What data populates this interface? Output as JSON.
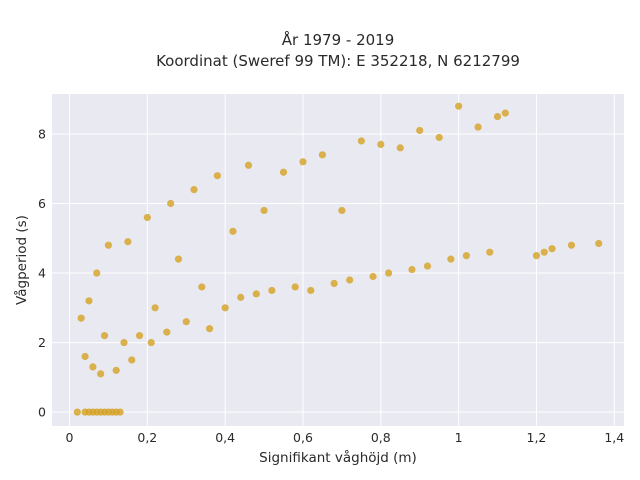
{
  "chart_data": {
    "type": "scatter",
    "title_lines": [
      "År 1979 - 2019",
      "Koordinat (Sweref 99 TM): E 352218, N 6212799"
    ],
    "xlabel": "Signifikant våghöjd (m)",
    "ylabel": "Vågperiod (s)",
    "xlim": [
      -0.045,
      1.425
    ],
    "ylim": [
      -0.4,
      9.15
    ],
    "x_ticks": [
      0,
      0.2,
      0.4,
      0.6,
      0.8,
      1,
      1.2,
      1.4
    ],
    "x_tick_labels": [
      "0",
      "0,2",
      "0,4",
      "0,6",
      "0,8",
      "1",
      "1,2",
      "1,4"
    ],
    "y_ticks": [
      0,
      2,
      4,
      6,
      8
    ],
    "y_tick_labels": [
      "0",
      "2",
      "4",
      "6",
      "8"
    ],
    "grid": true,
    "marker_color": "#D4A122",
    "plot_background": "#E9E9F1",
    "grid_color": "#FFFFFF",
    "series": [
      {
        "values": [
          [
            0.02,
            0.0
          ],
          [
            0.04,
            0.0
          ],
          [
            0.05,
            0.0
          ],
          [
            0.06,
            0.0
          ],
          [
            0.07,
            0.0
          ],
          [
            0.08,
            0.0
          ],
          [
            0.09,
            0.0
          ],
          [
            0.1,
            0.0
          ],
          [
            0.11,
            0.0
          ],
          [
            0.12,
            0.0
          ],
          [
            0.13,
            0.0
          ],
          [
            0.03,
            2.7
          ],
          [
            0.04,
            1.6
          ],
          [
            0.05,
            3.2
          ],
          [
            0.06,
            1.3
          ],
          [
            0.07,
            4.0
          ],
          [
            0.08,
            1.1
          ],
          [
            0.09,
            2.2
          ],
          [
            0.1,
            4.8
          ],
          [
            0.12,
            1.2
          ],
          [
            0.14,
            2.0
          ],
          [
            0.15,
            4.9
          ],
          [
            0.16,
            1.5
          ],
          [
            0.18,
            2.2
          ],
          [
            0.2,
            5.6
          ],
          [
            0.21,
            2.0
          ],
          [
            0.22,
            3.0
          ],
          [
            0.25,
            2.3
          ],
          [
            0.26,
            6.0
          ],
          [
            0.28,
            4.4
          ],
          [
            0.3,
            2.6
          ],
          [
            0.32,
            6.4
          ],
          [
            0.34,
            3.6
          ],
          [
            0.36,
            2.4
          ],
          [
            0.38,
            6.8
          ],
          [
            0.4,
            3.0
          ],
          [
            0.42,
            5.2
          ],
          [
            0.44,
            3.3
          ],
          [
            0.46,
            7.1
          ],
          [
            0.48,
            3.4
          ],
          [
            0.5,
            5.8
          ],
          [
            0.52,
            3.5
          ],
          [
            0.55,
            6.9
          ],
          [
            0.58,
            3.6
          ],
          [
            0.6,
            7.2
          ],
          [
            0.62,
            3.5
          ],
          [
            0.65,
            7.4
          ],
          [
            0.68,
            3.7
          ],
          [
            0.7,
            5.8
          ],
          [
            0.72,
            3.8
          ],
          [
            0.75,
            7.8
          ],
          [
            0.78,
            3.9
          ],
          [
            0.8,
            7.7
          ],
          [
            0.82,
            4.0
          ],
          [
            0.85,
            7.6
          ],
          [
            0.88,
            4.1
          ],
          [
            0.9,
            8.1
          ],
          [
            0.92,
            4.2
          ],
          [
            0.95,
            7.9
          ],
          [
            0.98,
            4.4
          ],
          [
            1.0,
            8.8
          ],
          [
            1.02,
            4.5
          ],
          [
            1.05,
            8.2
          ],
          [
            1.08,
            4.6
          ],
          [
            1.1,
            8.5
          ],
          [
            1.12,
            8.6
          ],
          [
            1.2,
            4.5
          ],
          [
            1.22,
            4.6
          ],
          [
            1.24,
            4.7
          ],
          [
            1.29,
            4.8
          ],
          [
            1.36,
            4.85
          ]
        ]
      }
    ]
  }
}
